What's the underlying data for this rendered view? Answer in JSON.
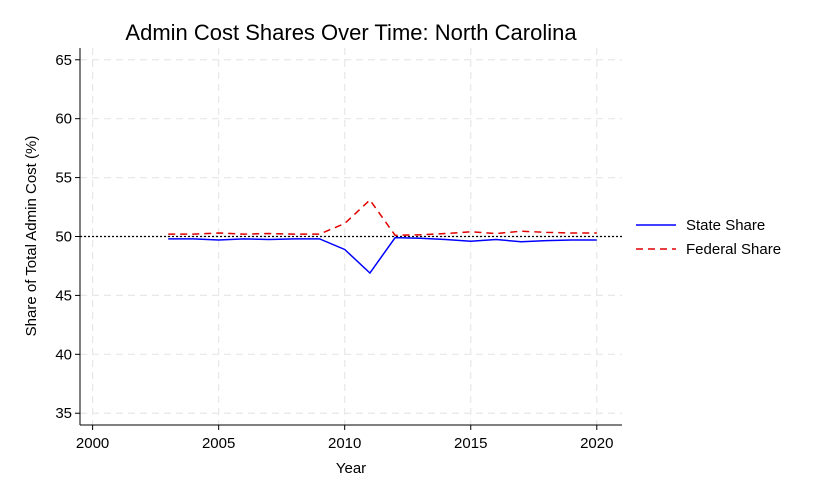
{
  "chart_data": {
    "type": "line",
    "title": "Admin Cost Shares Over Time: North Carolina",
    "xlabel": "Year",
    "ylabel": "Share of Total Admin Cost (%)",
    "xlim": [
      1999.5,
      2021
    ],
    "ylim": [
      34,
      66
    ],
    "xticks": [
      2000,
      2005,
      2010,
      2015,
      2020
    ],
    "yticks": [
      35,
      40,
      45,
      50,
      55,
      60,
      65
    ],
    "grid": true,
    "legend_position": "right",
    "reference_line": {
      "y": 50,
      "style": "dotted",
      "color": "#000000"
    },
    "x": [
      2003,
      2004,
      2005,
      2006,
      2007,
      2008,
      2009,
      2010,
      2011,
      2012,
      2013,
      2014,
      2015,
      2016,
      2017,
      2018,
      2019,
      2020
    ],
    "series": [
      {
        "name": "State Share",
        "color": "#0000ff",
        "style": "solid",
        "values": [
          49.8,
          49.8,
          49.7,
          49.8,
          49.75,
          49.8,
          49.8,
          48.9,
          46.9,
          49.9,
          49.85,
          49.75,
          49.6,
          49.75,
          49.55,
          49.65,
          49.7,
          49.7
        ]
      },
      {
        "name": "Federal Share",
        "color": "#e00000",
        "style": "dashed",
        "values": [
          50.2,
          50.2,
          50.3,
          50.2,
          50.25,
          50.2,
          50.2,
          51.1,
          53.1,
          50.1,
          50.15,
          50.25,
          50.4,
          50.25,
          50.45,
          50.35,
          50.3,
          50.3
        ]
      }
    ]
  }
}
